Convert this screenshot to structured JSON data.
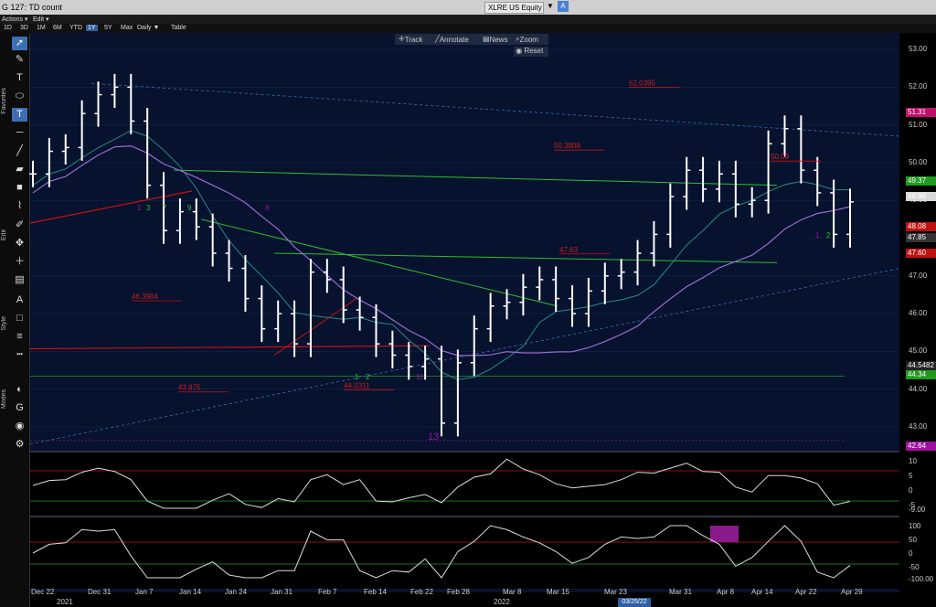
{
  "window": {
    "title": "G 127: TD count",
    "ticker": "XLRE US Equity",
    "a_button": "A"
  },
  "toolbar": {
    "actions": "Actions ▾",
    "edit": "Edit ▾"
  },
  "ranges": [
    "1D",
    "3D",
    "1M",
    "6M",
    "YTD",
    "1Y",
    "5Y",
    "Max",
    "Daily ▼",
    "Table"
  ],
  "selected_range": "1Y",
  "left_tabs": {
    "favorites": "Favorites",
    "edit": "Edit",
    "style": "Style",
    "modes": "Modes"
  },
  "annotation_bar": {
    "track": "Track",
    "annotate": "Annotate",
    "news": "News",
    "zoom": "Zoom",
    "reset": "Reset"
  },
  "price_axis": [
    "53.00",
    "52.00",
    "51.00",
    "50.00",
    "49.00",
    "48.00",
    "47.00",
    "46.00",
    "45.00",
    "44.00",
    "43.00"
  ],
  "price_tags": [
    {
      "text": "51.31",
      "color": "#c0106a"
    },
    {
      "text": "49.37",
      "color": "#1f9a1f"
    },
    {
      "text": "48.96",
      "color": "#d9d9d9"
    },
    {
      "text": "48.08",
      "color": "#c01010"
    },
    {
      "text": "47.85",
      "color": "#333"
    },
    {
      "text": "47.60",
      "color": "#c01010"
    },
    {
      "text": "44.5482",
      "color": "#222"
    },
    {
      "text": "44.34",
      "color": "#1f9a1f"
    },
    {
      "text": "42.64",
      "color": "#a010a0"
    }
  ],
  "osc1_axis": [
    "10",
    "5",
    "0",
    "-5",
    "-9.00"
  ],
  "osc2_axis": [
    "100",
    "50",
    "0",
    "-50",
    "-100.00"
  ],
  "x_axis": [
    "Dec 22",
    "Dec 31",
    "Jan 7",
    "Jan 14",
    "Jan 24",
    "Jan 31",
    "Feb 7",
    "Feb 14",
    "Feb 22",
    "Feb 28",
    "Mar 8",
    "Mar 15",
    "Mar 23",
    "Mar 31",
    "Apr 8",
    "Apr 14",
    "Apr 22",
    "Apr 29"
  ],
  "years": [
    "2021",
    "2022"
  ],
  "cursor_date": "03/25/22",
  "level_labels": [
    "52.0395",
    "50.3808",
    "47.63",
    "46.3904",
    "43.975",
    "44.0311",
    "50.09"
  ],
  "chart_data": {
    "type": "line",
    "title": "",
    "series": [
      {
        "values": [
          49.7,
          50.3,
          50.4,
          51.3,
          51.8,
          52.0,
          51.1,
          49.4,
          48.2,
          48.7,
          48.3,
          47.6,
          47.2,
          46.4,
          45.6,
          46.0,
          45.2,
          47.1,
          46.9,
          46.1,
          45.9,
          45.2,
          44.9,
          44.6,
          44.8,
          43.1,
          44.7,
          45.6,
          46.2,
          46.3,
          46.7,
          46.9,
          46.4,
          46.0,
          46.6,
          47.0,
          47.1,
          47.6,
          48.1,
          49.1,
          49.8,
          49.3,
          49.7,
          48.9,
          49.0,
          50.5,
          50.9,
          49.8,
          49.2,
          48.1,
          48.96
        ]
      }
    ]
  }
}
